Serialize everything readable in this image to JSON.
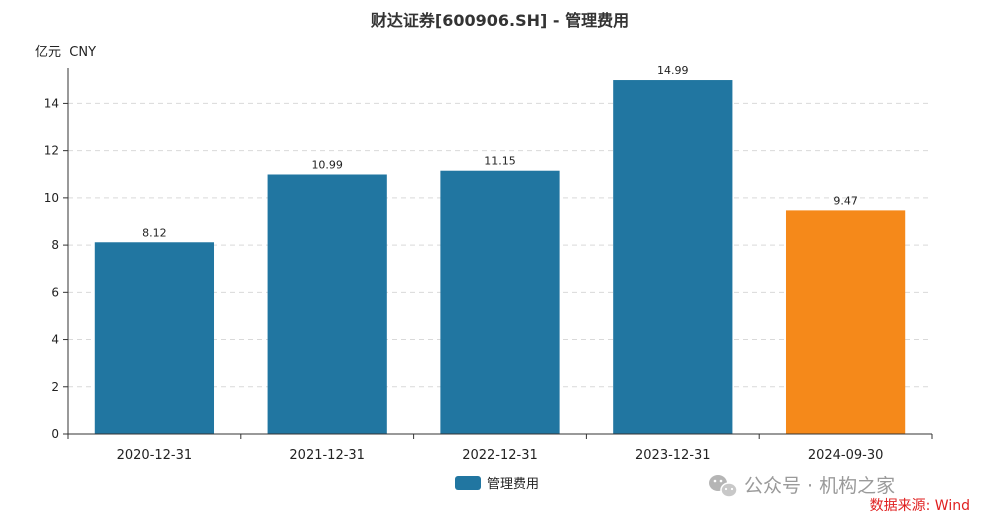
{
  "chart_data": {
    "type": "bar",
    "title": "财达证券[600906.SH] - 管理费用",
    "ylabel": "亿元  CNY",
    "xlabel": "",
    "categories": [
      "2020-12-31",
      "2021-12-31",
      "2022-12-31",
      "2023-12-31",
      "2024-09-30"
    ],
    "series": [
      {
        "name": "管理费用",
        "values": [
          8.12,
          10.99,
          11.15,
          14.99,
          9.47
        ]
      }
    ],
    "bar_colors": [
      "#2176a1",
      "#2176a1",
      "#2176a1",
      "#2176a1",
      "#f5891a"
    ],
    "data_labels": [
      "8.12",
      "10.99",
      "11.15",
      "14.99",
      "9.47"
    ],
    "ylim": [
      0,
      15.5
    ],
    "yticks": [
      0,
      2,
      4,
      6,
      8,
      10,
      12,
      14
    ],
    "grid": "horizontal-dashed",
    "legend_position": "bottom-center"
  },
  "watermark": {
    "text": "公众号 · 机构之家"
  },
  "source_note": "数据来源: Wind",
  "colors": {
    "primary": "#2176a1",
    "highlight": "#f5891a",
    "source": "#e02020"
  }
}
